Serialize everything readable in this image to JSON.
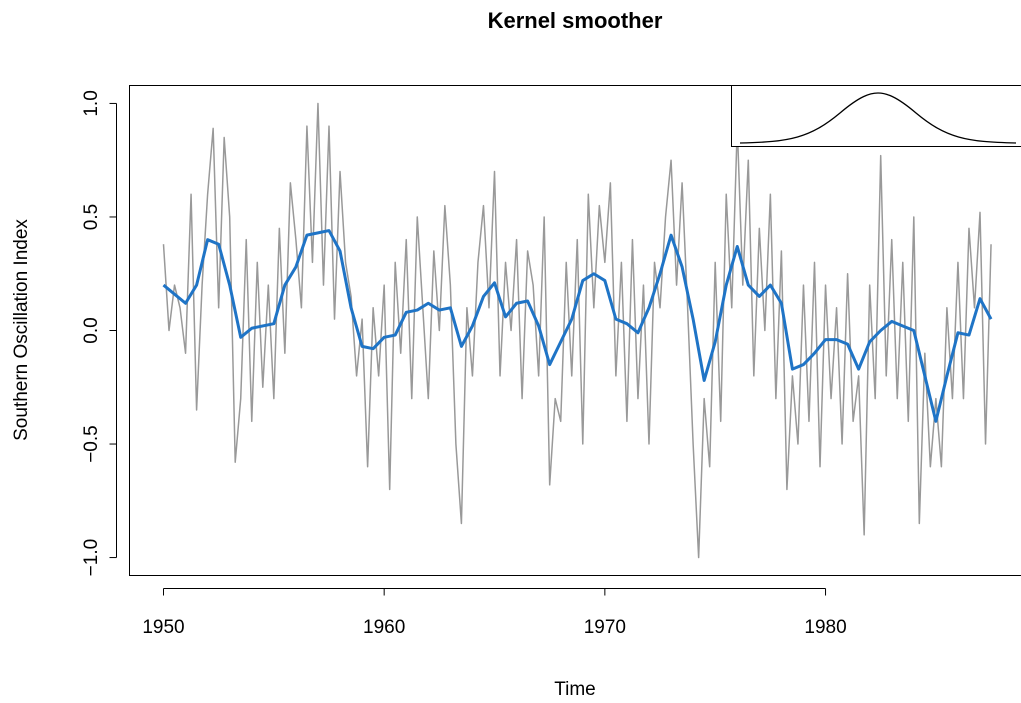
{
  "chart_data": {
    "type": "line",
    "title": "Kernel smoother",
    "x_label": "Time",
    "y_label": "Southern Oscillation Index",
    "xlim": [
      1948.46,
      1988.88
    ],
    "ylim": [
      -1.079,
      1.079
    ],
    "xticks": [
      1950,
      1960,
      1970,
      1980
    ],
    "yticks": [
      {
        "value": -1.0,
        "label": "−1.0"
      },
      {
        "value": -0.5,
        "label": "−0.5"
      },
      {
        "value": 0.0,
        "label": "0.0"
      },
      {
        "value": 0.5,
        "label": "0.5"
      },
      {
        "value": 1.0,
        "label": "1.0"
      }
    ],
    "series": [
      {
        "color": "#999999",
        "width": 1.5,
        "x": [
          1950,
          1950.25,
          1950.5,
          1950.75,
          1951,
          1951.25,
          1951.5,
          1951.75,
          1952,
          1952.25,
          1952.5,
          1952.75,
          1953,
          1953.25,
          1953.5,
          1953.75,
          1954,
          1954.25,
          1954.5,
          1954.75,
          1955,
          1955.25,
          1955.5,
          1955.75,
          1956,
          1956.25,
          1956.5,
          1956.75,
          1957,
          1957.25,
          1957.5,
          1957.75,
          1958,
          1958.25,
          1958.5,
          1958.75,
          1959,
          1959.25,
          1959.5,
          1959.75,
          1960,
          1960.25,
          1960.5,
          1960.75,
          1961,
          1961.25,
          1961.5,
          1961.75,
          1962,
          1962.25,
          1962.5,
          1962.75,
          1963,
          1963.25,
          1963.5,
          1963.75,
          1964,
          1964.25,
          1964.5,
          1964.75,
          1965,
          1965.25,
          1965.5,
          1965.75,
          1966,
          1966.25,
          1966.5,
          1966.75,
          1967,
          1967.25,
          1967.5,
          1967.75,
          1968,
          1968.25,
          1968.5,
          1968.75,
          1969,
          1969.25,
          1969.5,
          1969.75,
          1970,
          1970.25,
          1970.5,
          1970.75,
          1971,
          1971.25,
          1971.5,
          1971.75,
          1972,
          1972.25,
          1972.5,
          1972.75,
          1973,
          1973.25,
          1973.5,
          1973.75,
          1974,
          1974.25,
          1974.5,
          1974.75,
          1975,
          1975.25,
          1975.5,
          1975.75,
          1976,
          1976.25,
          1976.5,
          1976.75,
          1977,
          1977.25,
          1977.5,
          1977.75,
          1978,
          1978.25,
          1978.5,
          1978.75,
          1979,
          1979.25,
          1979.5,
          1979.75,
          1980,
          1980.25,
          1980.5,
          1980.75,
          1981,
          1981.25,
          1981.5,
          1981.75,
          1982,
          1982.25,
          1982.5,
          1982.75,
          1983,
          1983.25,
          1983.5,
          1983.75,
          1984,
          1984.25,
          1984.5,
          1984.75,
          1985,
          1985.25,
          1985.5,
          1985.75,
          1986,
          1986.25,
          1986.5,
          1986.75,
          1987,
          1987.25,
          1987.5
        ],
        "values": [
          0.38,
          0.0,
          0.2,
          0.1,
          -0.1,
          0.6,
          -0.35,
          0.2,
          0.6,
          0.89,
          0.1,
          0.85,
          0.5,
          -0.58,
          -0.3,
          0.4,
          -0.4,
          0.3,
          -0.25,
          0.2,
          -0.3,
          0.45,
          -0.1,
          0.65,
          0.4,
          0.1,
          0.9,
          0.3,
          1.0,
          0.2,
          0.9,
          0.05,
          0.7,
          0.3,
          0.15,
          -0.2,
          0.05,
          -0.6,
          0.1,
          -0.2,
          0.2,
          -0.7,
          0.3,
          -0.1,
          0.4,
          -0.3,
          0.5,
          0.1,
          -0.3,
          0.35,
          0.0,
          0.55,
          0.2,
          -0.5,
          -0.85,
          0.1,
          -0.2,
          0.3,
          0.55,
          0.1,
          0.7,
          -0.2,
          0.3,
          0.0,
          0.4,
          -0.3,
          0.35,
          0.2,
          -0.2,
          0.5,
          -0.68,
          -0.3,
          -0.4,
          0.3,
          -0.2,
          0.4,
          -0.5,
          0.6,
          0.1,
          0.55,
          0.3,
          0.65,
          -0.2,
          0.3,
          -0.4,
          0.4,
          -0.3,
          0.2,
          -0.5,
          0.3,
          0.1,
          0.5,
          0.75,
          0.2,
          0.65,
          0.1,
          -0.5,
          -1.0,
          -0.3,
          -0.6,
          0.3,
          -0.4,
          0.6,
          0.1,
          0.9,
          0.2,
          0.75,
          -0.2,
          0.45,
          0.0,
          0.6,
          -0.3,
          0.35,
          -0.7,
          -0.2,
          -0.5,
          0.2,
          -0.4,
          0.3,
          -0.6,
          0.2,
          -0.3,
          0.1,
          -0.5,
          0.25,
          -0.4,
          -0.2,
          -0.9,
          0.2,
          -0.3,
          0.77,
          -0.2,
          0.4,
          -0.3,
          0.3,
          -0.4,
          0.5,
          -0.85,
          -0.1,
          -0.6,
          -0.3,
          -0.6,
          0.1,
          -0.3,
          0.3,
          -0.3,
          0.45,
          0.1,
          0.52,
          -0.5,
          0.38
        ]
      },
      {
        "color": "#1f74c6",
        "width": 3,
        "x": [
          1950,
          1950.5,
          1951,
          1951.5,
          1952,
          1952.5,
          1953,
          1953.5,
          1954,
          1954.5,
          1955,
          1955.5,
          1956,
          1956.5,
          1957,
          1957.5,
          1958,
          1958.5,
          1959,
          1959.5,
          1960,
          1960.5,
          1961,
          1961.5,
          1962,
          1962.5,
          1963,
          1963.5,
          1964,
          1964.5,
          1965,
          1965.5,
          1966,
          1966.5,
          1967,
          1967.5,
          1968,
          1968.5,
          1969,
          1969.5,
          1970,
          1970.5,
          1971,
          1971.5,
          1972,
          1972.5,
          1973,
          1973.5,
          1974,
          1974.5,
          1975,
          1975.5,
          1976,
          1976.5,
          1977,
          1977.5,
          1978,
          1978.5,
          1979,
          1979.5,
          1980,
          1980.5,
          1981,
          1981.5,
          1982,
          1982.5,
          1983,
          1983.5,
          1984,
          1984.5,
          1985,
          1985.5,
          1986,
          1986.5,
          1987,
          1987.5
        ],
        "values": [
          0.2,
          0.16,
          0.12,
          0.2,
          0.4,
          0.38,
          0.2,
          -0.03,
          0.01,
          0.02,
          0.03,
          0.2,
          0.28,
          0.42,
          0.43,
          0.44,
          0.35,
          0.1,
          -0.07,
          -0.08,
          -0.03,
          -0.02,
          0.08,
          0.09,
          0.12,
          0.09,
          0.1,
          -0.07,
          0.02,
          0.15,
          0.21,
          0.06,
          0.12,
          0.13,
          0.02,
          -0.15,
          -0.05,
          0.05,
          0.22,
          0.25,
          0.22,
          0.05,
          0.03,
          -0.01,
          0.1,
          0.25,
          0.42,
          0.28,
          0.05,
          -0.22,
          -0.05,
          0.2,
          0.37,
          0.2,
          0.15,
          0.2,
          0.12,
          -0.17,
          -0.15,
          -0.1,
          -0.04,
          -0.04,
          -0.06,
          -0.17,
          -0.05,
          0.0,
          0.04,
          0.02,
          0.0,
          -0.2,
          -0.4,
          -0.2,
          -0.01,
          -0.02,
          0.14,
          0.05
        ]
      }
    ]
  }
}
